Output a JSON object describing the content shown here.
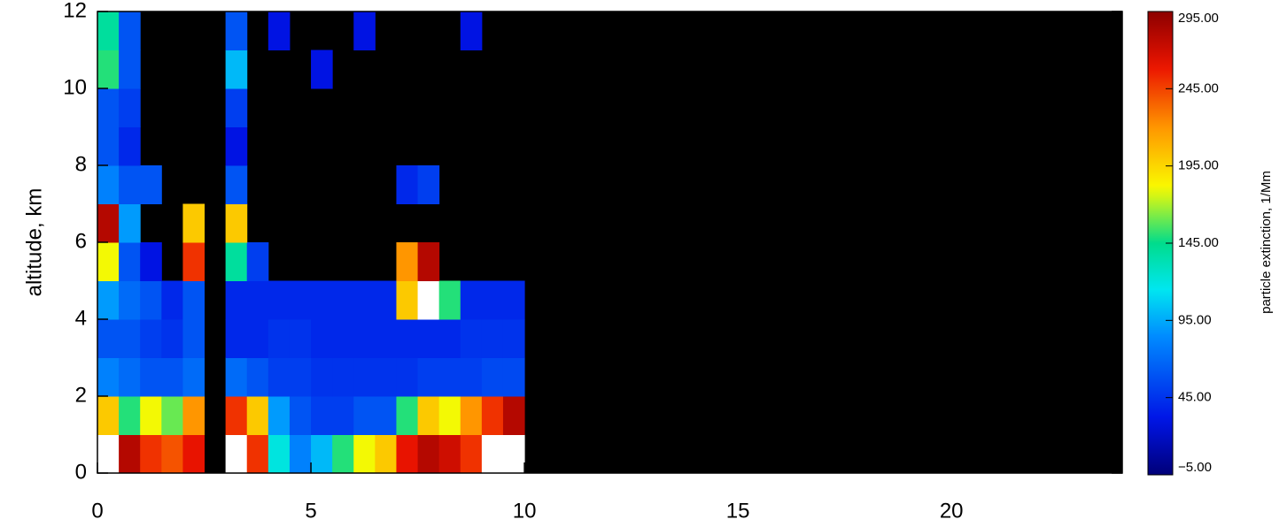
{
  "chart_data": {
    "type": "heatmap",
    "ylabel": "altitude, km",
    "colorbar_label": "particle extinction, 1/Mm",
    "x_edges": [
      0,
      0.5,
      1,
      1.5,
      2,
      2.5,
      3,
      3.5,
      4,
      4.5,
      5,
      5.5,
      6,
      6.5,
      7,
      7.5,
      8,
      8.5,
      9,
      9.5,
      10
    ],
    "y_edges": [
      0,
      1,
      2,
      3,
      4,
      5,
      6,
      7,
      8,
      9,
      10,
      11,
      12
    ],
    "z": [
      [
        300,
        280,
        250,
        240,
        260,
        null,
        300,
        250,
        120,
        80,
        100,
        150,
        180,
        200,
        260,
        280,
        270,
        250,
        300,
        300
      ],
      [
        200,
        150,
        180,
        160,
        220,
        null,
        250,
        200,
        90,
        60,
        50,
        50,
        60,
        60,
        150,
        200,
        180,
        220,
        250,
        280
      ],
      [
        80,
        70,
        60,
        60,
        70,
        null,
        70,
        60,
        50,
        50,
        45,
        45,
        45,
        45,
        45,
        50,
        50,
        50,
        55,
        55
      ],
      [
        60,
        60,
        50,
        45,
        60,
        null,
        40,
        40,
        45,
        45,
        40,
        40,
        40,
        40,
        40,
        40,
        40,
        45,
        45,
        45
      ],
      [
        90,
        70,
        60,
        40,
        60,
        null,
        40,
        40,
        40,
        40,
        40,
        40,
        40,
        40,
        200,
        300,
        150,
        40,
        40,
        40
      ],
      [
        180,
        60,
        30,
        null,
        250,
        null,
        140,
        50,
        null,
        null,
        null,
        null,
        null,
        null,
        220,
        280,
        null,
        null,
        null,
        null
      ],
      [
        280,
        90,
        null,
        null,
        200,
        null,
        200,
        null,
        null,
        null,
        null,
        null,
        null,
        null,
        null,
        null,
        null,
        null,
        null,
        null
      ],
      [
        80,
        60,
        60,
        null,
        null,
        null,
        60,
        null,
        null,
        null,
        null,
        null,
        null,
        null,
        40,
        50,
        null,
        null,
        null,
        null
      ],
      [
        60,
        40,
        null,
        null,
        null,
        null,
        30,
        null,
        null,
        null,
        null,
        null,
        null,
        null,
        null,
        null,
        null,
        null,
        null,
        null
      ],
      [
        60,
        50,
        null,
        null,
        null,
        null,
        50,
        null,
        null,
        null,
        null,
        null,
        null,
        null,
        null,
        null,
        null,
        null,
        null,
        null
      ],
      [
        150,
        60,
        null,
        null,
        null,
        null,
        100,
        null,
        null,
        null,
        30,
        null,
        null,
        null,
        null,
        null,
        null,
        null,
        null,
        null
      ],
      [
        140,
        60,
        null,
        null,
        null,
        null,
        60,
        null,
        30,
        null,
        null,
        null,
        30,
        null,
        null,
        null,
        null,
        30,
        null,
        null
      ]
    ],
    "xlim": [
      0,
      24
    ],
    "xticks": [
      0,
      5,
      10,
      15,
      20
    ],
    "ylim": [
      0,
      12
    ],
    "yticks": [
      0,
      2,
      4,
      6,
      8,
      10,
      12
    ],
    "zlim": [
      -5,
      295
    ],
    "zticks": [
      {
        "value": -5,
        "label": "−5.00"
      },
      {
        "value": 45,
        "label": "45.00"
      },
      {
        "value": 95,
        "label": "95.00"
      },
      {
        "value": 145,
        "label": "145.00"
      },
      {
        "value": 195,
        "label": "195.00"
      },
      {
        "value": 245,
        "label": "245.00"
      },
      {
        "value": 295,
        "label": "295.00"
      }
    ],
    "background": "#000000",
    "over_color": "#ffffff"
  }
}
